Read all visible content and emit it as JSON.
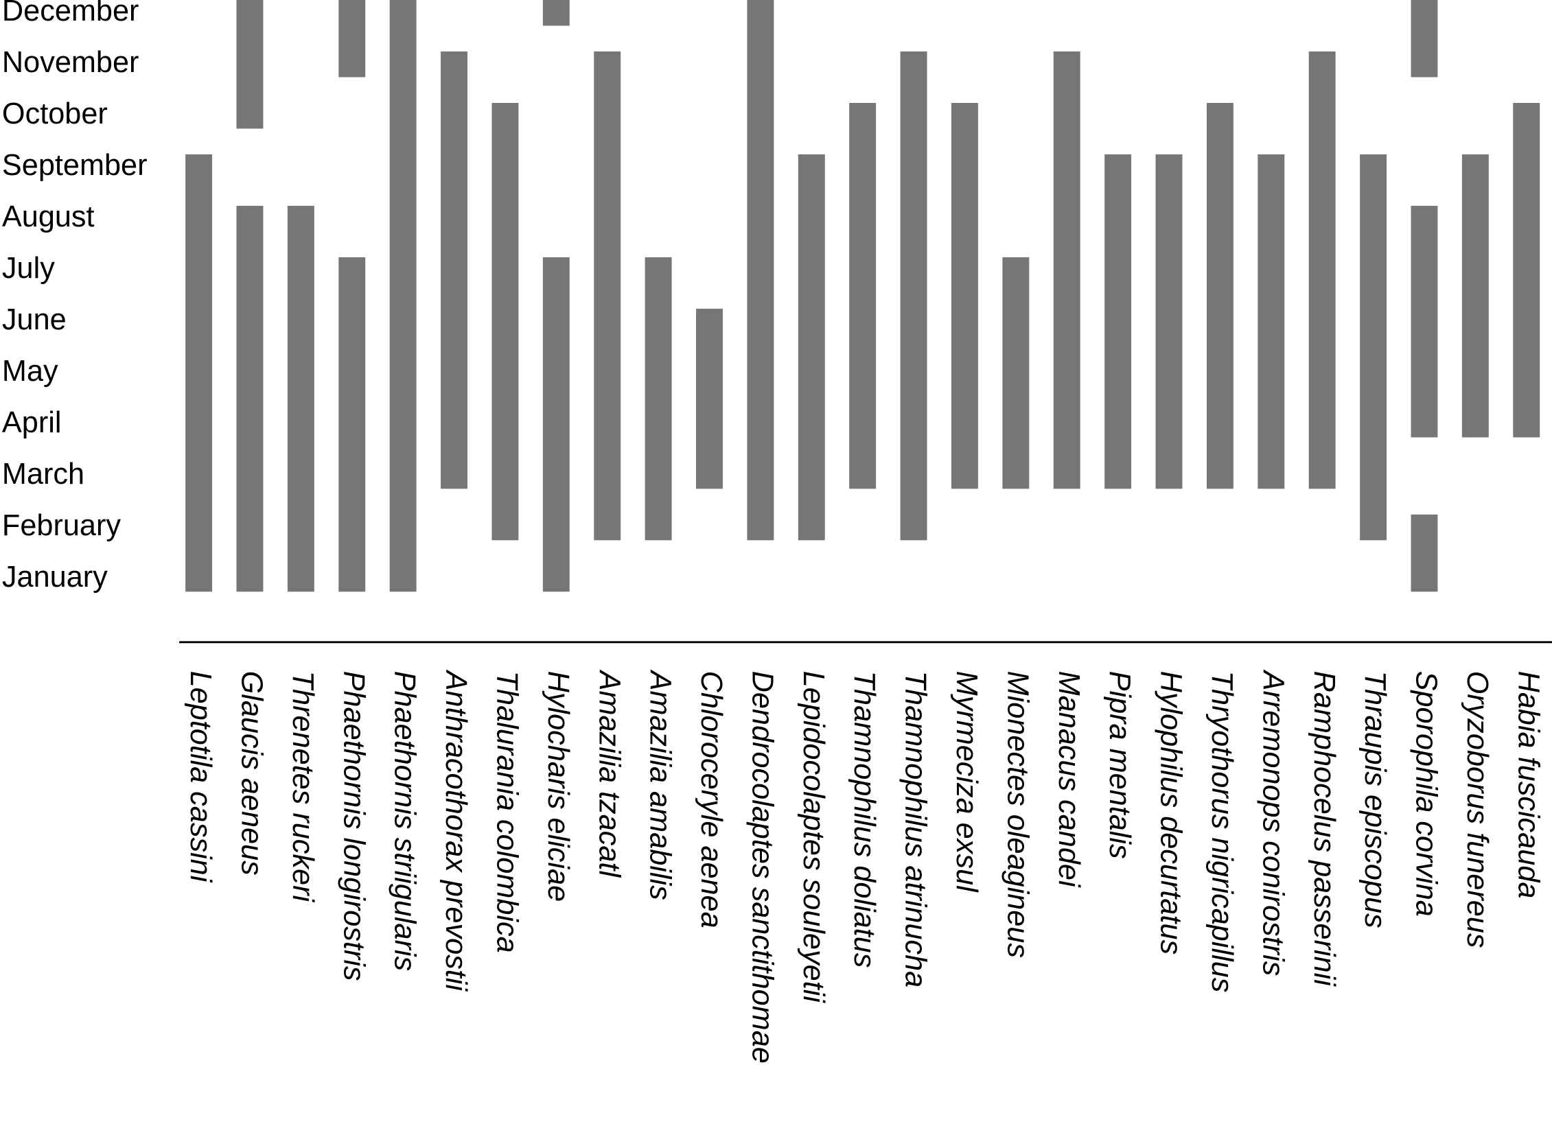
{
  "chart_data": {
    "type": "range",
    "categories": [
      "Leptotila cassini",
      "Glaucis aeneus",
      "Threnetes ruckeri",
      "Phaethornis longirostris",
      "Phaethornis striigularis",
      "Anthracothorax prevostii",
      "Thalurania colombica",
      "Hylocharis eliciae",
      "Amazilia tzacatl",
      "Amazilia amabilis",
      "Chloroceryle aenea",
      "Dendrocolaptes sancti­thomae",
      "Lepidocolaptes souleyetii",
      "Thamnophilus doliatus",
      "Thamnophilus atrinucha",
      "Myrmeciza exsul",
      "Mionectes oleagineus",
      "Manacus candei",
      "Pipra mentalis",
      "Hylophilus decurtatus",
      "Thryothorus nigricapillus",
      "Arremonops conirostris",
      "Ramphocelus passerinii",
      "Thraupis episcopus",
      "Sporophila corvina",
      "Oryzoborus funereus",
      "Habia fuscicauda"
    ],
    "ranges": [
      [
        [
          1,
          9
        ]
      ],
      [
        [
          10,
          12
        ],
        [
          1,
          8
        ]
      ],
      [
        [
          1,
          8
        ]
      ],
      [
        [
          11,
          12
        ],
        [
          1,
          7
        ]
      ],
      [
        [
          1,
          12
        ]
      ],
      [
        [
          3,
          11
        ]
      ],
      [
        [
          2,
          10
        ]
      ],
      [
        [
          12,
          12
        ],
        [
          1,
          7
        ]
      ],
      [
        [
          2,
          11
        ]
      ],
      [
        [
          2,
          7
        ]
      ],
      [
        [
          3,
          6
        ]
      ],
      [
        [
          2,
          12
        ]
      ],
      [
        [
          2,
          9
        ]
      ],
      [
        [
          3,
          10
        ]
      ],
      [
        [
          2,
          11
        ]
      ],
      [
        [
          3,
          10
        ]
      ],
      [
        [
          3,
          7
        ]
      ],
      [
        [
          3,
          11
        ]
      ],
      [
        [
          3,
          9
        ]
      ],
      [
        [
          3,
          9
        ]
      ],
      [
        [
          3,
          10
        ]
      ],
      [
        [
          3,
          9
        ]
      ],
      [
        [
          3,
          11
        ]
      ],
      [
        [
          2,
          9
        ]
      ],
      [
        [
          11,
          12
        ],
        [
          4,
          8
        ],
        [
          1,
          2
        ]
      ],
      [
        [
          4,
          9
        ]
      ],
      [
        [
          4,
          10
        ]
      ]
    ],
    "color": "#767676",
    "ylim": [
      0.75,
      12.25
    ],
    "yticks": [
      {
        "value": 1,
        "label": "January"
      },
      {
        "value": 2,
        "label": "February"
      },
      {
        "value": 3,
        "label": "March"
      },
      {
        "value": 4,
        "label": "April"
      },
      {
        "value": 5,
        "label": "May"
      },
      {
        "value": 6,
        "label": "June"
      },
      {
        "value": 7,
        "label": "July"
      },
      {
        "value": 8,
        "label": "August"
      },
      {
        "value": 9,
        "label": "September"
      },
      {
        "value": 10,
        "label": "October"
      },
      {
        "value": 11,
        "label": "November"
      },
      {
        "value": 12,
        "label": "December"
      }
    ]
  }
}
